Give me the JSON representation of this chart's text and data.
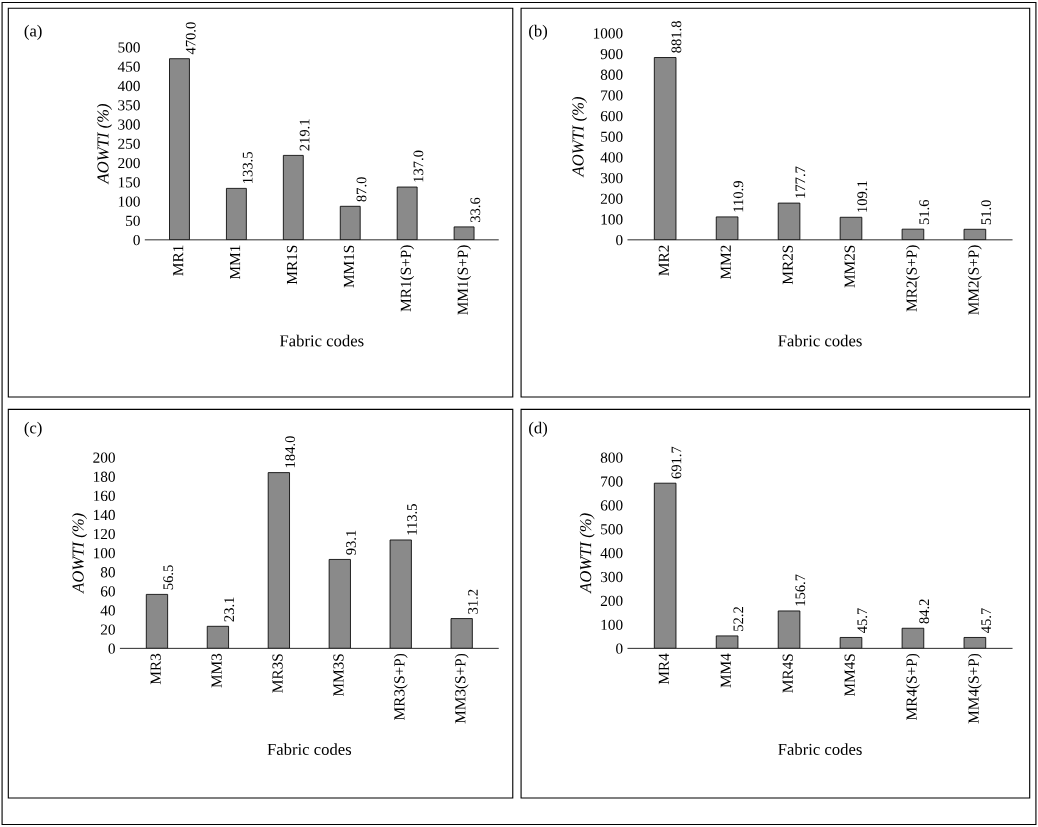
{
  "chart_data": [
    {
      "type": "bar",
      "annotations": [
        "(a)"
      ],
      "xlabel": "Fabric codes",
      "ylabel": "AOWTI (%)",
      "categories": [
        "MR1",
        "MM1",
        "MR1S",
        "MM1S",
        "MR1(S+P)",
        "MM1(S+P)"
      ],
      "values": [
        470.0,
        133.5,
        219.1,
        87.0,
        137.0,
        33.6
      ],
      "value_labels": [
        "470.0",
        "133.5",
        "219.1",
        "87.0",
        "137.0",
        "33.6"
      ],
      "color": "#8a8a8a",
      "ylim": [
        0,
        500
      ],
      "yticks": [
        0,
        50,
        100,
        150,
        200,
        250,
        300,
        350,
        400,
        450,
        500
      ],
      "grid": false,
      "legend": false
    },
    {
      "type": "bar",
      "annotations": [
        "(b)"
      ],
      "xlabel": "Fabric codes",
      "ylabel": "AOWTI (%)",
      "categories": [
        "MR2",
        "MM2",
        "MR2S",
        "MM2S",
        "MR2(S+P)",
        "MM2(S+P)"
      ],
      "values": [
        881.8,
        110.9,
        177.7,
        109.1,
        51.6,
        51.0
      ],
      "value_labels": [
        "881.8",
        "110.9",
        "177.7",
        "109.1",
        "51.6",
        "51.0"
      ],
      "color": "#8a8a8a",
      "ylim": [
        0,
        1000
      ],
      "yticks": [
        0,
        100,
        200,
        300,
        400,
        500,
        600,
        700,
        800,
        900,
        1000
      ],
      "grid": false,
      "legend": false
    },
    {
      "type": "bar",
      "annotations": [
        "(c)"
      ],
      "xlabel": "Fabric codes",
      "ylabel": "AOWTI (%)",
      "categories": [
        "MR3",
        "MM3",
        "MR3S",
        "MM3S",
        "MR3(S+P)",
        "MM3(S+P)"
      ],
      "values": [
        56.5,
        23.1,
        184.0,
        93.1,
        113.5,
        31.2
      ],
      "value_labels": [
        "56.5",
        "23.1",
        "184.0",
        "93.1",
        "113.5",
        "31.2"
      ],
      "color": "#8a8a8a",
      "ylim": [
        0,
        200
      ],
      "yticks": [
        0,
        20,
        40,
        60,
        80,
        100,
        120,
        140,
        160,
        180,
        200
      ],
      "grid": false,
      "legend": false
    },
    {
      "type": "bar",
      "annotations": [
        "(d)"
      ],
      "xlabel": "Fabric codes",
      "ylabel": "AOWTI (%)",
      "categories": [
        "MR4",
        "MM4",
        "MR4S",
        "MM4S",
        "MR4(S+P)",
        "MM4(S+P)"
      ],
      "values": [
        691.7,
        52.2,
        156.7,
        45.7,
        84.2,
        45.7
      ],
      "value_labels": [
        "691.7",
        "52.2",
        "156.7",
        "45.7",
        "84.2",
        "45.7"
      ],
      "color": "#8a8a8a",
      "ylim": [
        0,
        800
      ],
      "yticks": [
        0,
        100,
        200,
        300,
        400,
        500,
        600,
        700,
        800
      ],
      "grid": false,
      "legend": false
    }
  ]
}
